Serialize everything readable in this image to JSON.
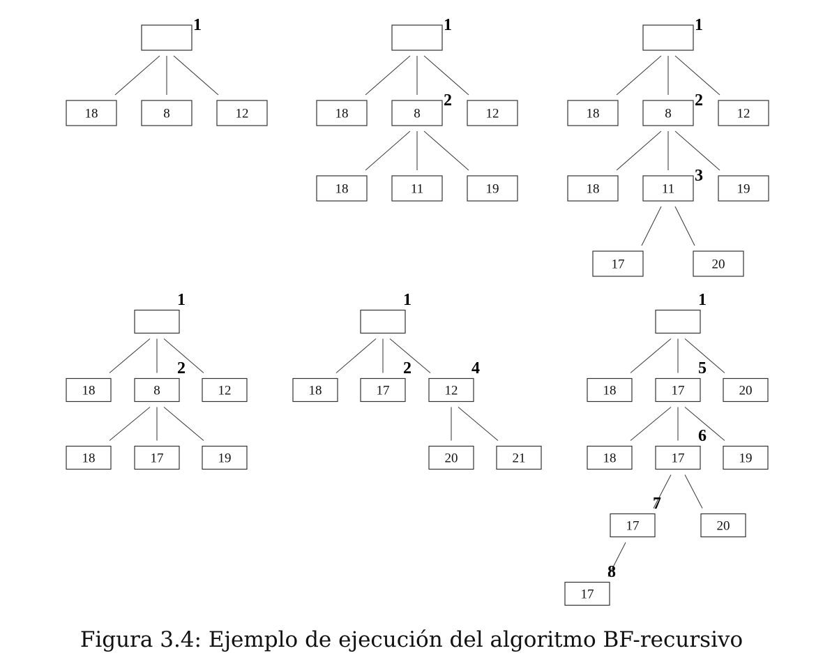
{
  "caption": "Figura 3.4: Ejemplo de ejecución del algoritmo BF-recursivo",
  "trees": [
    {
      "name": "tree-1",
      "nodes": [
        {
          "id": "r",
          "label": "",
          "step": "1"
        },
        {
          "id": "a",
          "label": "18",
          "parent": "r"
        },
        {
          "id": "b",
          "label": "8",
          "parent": "r"
        },
        {
          "id": "c",
          "label": "12",
          "parent": "r"
        }
      ]
    },
    {
      "name": "tree-2",
      "nodes": [
        {
          "id": "r",
          "label": "",
          "step": "1"
        },
        {
          "id": "a",
          "label": "18",
          "parent": "r"
        },
        {
          "id": "b",
          "label": "8",
          "parent": "r",
          "step": "2"
        },
        {
          "id": "c",
          "label": "12",
          "parent": "r"
        },
        {
          "id": "d",
          "label": "18",
          "parent": "b"
        },
        {
          "id": "e",
          "label": "11",
          "parent": "b"
        },
        {
          "id": "f",
          "label": "19",
          "parent": "b"
        }
      ]
    },
    {
      "name": "tree-3",
      "nodes": [
        {
          "id": "r",
          "label": "",
          "step": "1"
        },
        {
          "id": "a",
          "label": "18",
          "parent": "r"
        },
        {
          "id": "b",
          "label": "8",
          "parent": "r",
          "step": "2"
        },
        {
          "id": "c",
          "label": "12",
          "parent": "r"
        },
        {
          "id": "d",
          "label": "18",
          "parent": "b"
        },
        {
          "id": "e",
          "label": "11",
          "parent": "b",
          "step": "3"
        },
        {
          "id": "f",
          "label": "19",
          "parent": "b"
        },
        {
          "id": "g",
          "label": "17",
          "parent": "e"
        },
        {
          "id": "h",
          "label": "20",
          "parent": "e"
        }
      ]
    },
    {
      "name": "tree-4",
      "nodes": [
        {
          "id": "r",
          "label": "",
          "step": "1"
        },
        {
          "id": "a",
          "label": "18",
          "parent": "r"
        },
        {
          "id": "b",
          "label": "8",
          "parent": "r",
          "step": "2"
        },
        {
          "id": "c",
          "label": "12",
          "parent": "r"
        },
        {
          "id": "d",
          "label": "18",
          "parent": "b"
        },
        {
          "id": "e",
          "label": "17",
          "parent": "b"
        },
        {
          "id": "f",
          "label": "19",
          "parent": "b"
        }
      ]
    },
    {
      "name": "tree-5",
      "nodes": [
        {
          "id": "r",
          "label": "",
          "step": "1"
        },
        {
          "id": "a",
          "label": "18",
          "parent": "r"
        },
        {
          "id": "b",
          "label": "17",
          "parent": "r",
          "step": "2"
        },
        {
          "id": "c",
          "label": "12",
          "parent": "r",
          "step": "4"
        },
        {
          "id": "d",
          "label": "20",
          "parent": "c"
        },
        {
          "id": "e",
          "label": "21",
          "parent": "c"
        }
      ]
    },
    {
      "name": "tree-6",
      "nodes": [
        {
          "id": "r",
          "label": "",
          "step": "1"
        },
        {
          "id": "a",
          "label": "18",
          "parent": "r"
        },
        {
          "id": "b",
          "label": "17",
          "parent": "r",
          "step": "5"
        },
        {
          "id": "c",
          "label": "20",
          "parent": "r"
        },
        {
          "id": "d",
          "label": "18",
          "parent": "b"
        },
        {
          "id": "e",
          "label": "17",
          "parent": "b",
          "step": "6"
        },
        {
          "id": "f",
          "label": "19",
          "parent": "b"
        },
        {
          "id": "g",
          "label": "17",
          "parent": "e",
          "step": "7"
        },
        {
          "id": "h",
          "label": "20",
          "parent": "e"
        },
        {
          "id": "i",
          "label": "17",
          "parent": "g",
          "step": "8"
        }
      ]
    }
  ]
}
